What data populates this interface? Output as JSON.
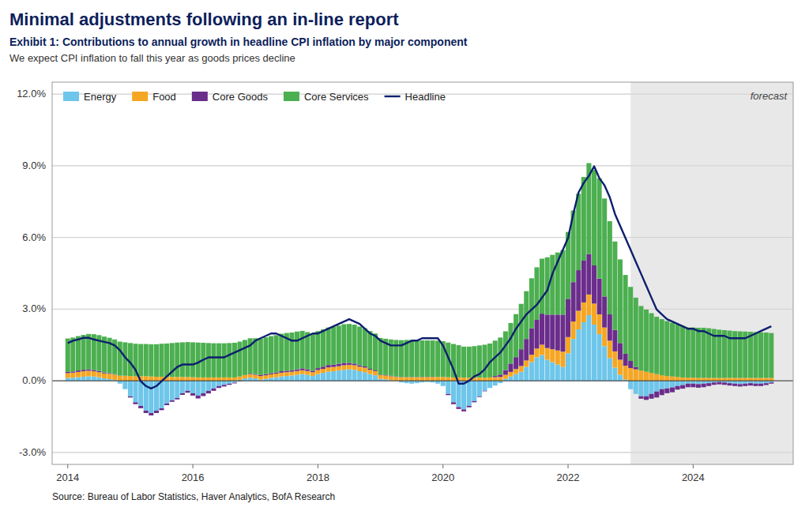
{
  "chart_data": {
    "type": "bar",
    "stacked": true,
    "title": "Minimal adjustments following an in-line report",
    "subtitle": [
      "Exhibit 1: Contributions to annual growth in headline CPI inflation by major component",
      "We expect CPI inflation to fall this year as goods prices decline"
    ],
    "source": "Source: Bureau of Labor Statistics, Haver Analytics, BofA Research",
    "annotations": [
      {
        "text": "forecast",
        "x": [
          2023.0,
          2025.6
        ]
      }
    ],
    "legend": "upper left",
    "grid": true,
    "xlim": [
      2013.75,
      2025.6
    ],
    "xticks": [
      2014,
      2016,
      2018,
      2020,
      2022,
      2024
    ],
    "ylim": [
      -3.5,
      12.5
    ],
    "yticks": [
      {
        "value": -3.0,
        "label": "-3.0%"
      },
      {
        "value": 0.0,
        "label": "0.0%"
      },
      {
        "value": 3.0,
        "label": "3.0%"
      },
      {
        "value": 6.0,
        "label": "6.0%"
      },
      {
        "value": 9.0,
        "label": "9.0%"
      },
      {
        "value": 12.0,
        "label": "12.0%"
      }
    ],
    "x": [
      2014.0,
      2014.083,
      2014.167,
      2014.25,
      2014.333,
      2014.417,
      2014.5,
      2014.583,
      2014.667,
      2014.75,
      2014.833,
      2014.917,
      2015.0,
      2015.083,
      2015.167,
      2015.25,
      2015.333,
      2015.417,
      2015.5,
      2015.583,
      2015.667,
      2015.75,
      2015.833,
      2015.917,
      2016.0,
      2016.083,
      2016.167,
      2016.25,
      2016.333,
      2016.417,
      2016.5,
      2016.583,
      2016.667,
      2016.75,
      2016.833,
      2016.917,
      2017.0,
      2017.083,
      2017.167,
      2017.25,
      2017.333,
      2017.417,
      2017.5,
      2017.583,
      2017.667,
      2017.75,
      2017.833,
      2017.917,
      2018.0,
      2018.083,
      2018.167,
      2018.25,
      2018.333,
      2018.417,
      2018.5,
      2018.583,
      2018.667,
      2018.75,
      2018.833,
      2018.917,
      2019.0,
      2019.083,
      2019.167,
      2019.25,
      2019.333,
      2019.417,
      2019.5,
      2019.583,
      2019.667,
      2019.75,
      2019.833,
      2019.917,
      2020.0,
      2020.083,
      2020.167,
      2020.25,
      2020.333,
      2020.417,
      2020.5,
      2020.583,
      2020.667,
      2020.75,
      2020.833,
      2020.917,
      2021.0,
      2021.083,
      2021.167,
      2021.25,
      2021.333,
      2021.417,
      2021.5,
      2021.583,
      2021.667,
      2021.75,
      2021.833,
      2021.917,
      2022.0,
      2022.083,
      2022.167,
      2022.25,
      2022.333,
      2022.417,
      2022.5,
      2022.583,
      2022.667,
      2022.75,
      2022.833,
      2022.917,
      2023.0,
      2023.083,
      2023.167,
      2023.25,
      2023.333,
      2023.417,
      2023.5,
      2023.583,
      2023.667,
      2023.75,
      2023.833,
      2023.917,
      2024.0,
      2024.083,
      2024.167,
      2024.25,
      2024.333,
      2024.417,
      2024.5,
      2024.583,
      2024.667,
      2024.75,
      2024.833,
      2024.917,
      2025.0,
      2025.083,
      2025.167,
      2025.25
    ],
    "series": [
      {
        "name": "Energy",
        "color": "#6EC6EA",
        "values": [
          0.12,
          0.13,
          0.15,
          0.17,
          0.19,
          0.18,
          0.15,
          0.1,
          0.07,
          0.04,
          -0.12,
          -0.35,
          -0.65,
          -0.9,
          -1.05,
          -1.25,
          -1.35,
          -1.25,
          -1.15,
          -0.95,
          -0.82,
          -0.72,
          -0.52,
          -0.42,
          -0.52,
          -0.62,
          -0.52,
          -0.42,
          -0.32,
          -0.22,
          -0.17,
          -0.12,
          -0.08,
          0.04,
          0.1,
          0.13,
          0.1,
          0.05,
          0.08,
          0.12,
          0.15,
          0.18,
          0.2,
          0.22,
          0.25,
          0.28,
          0.25,
          0.2,
          0.28,
          0.33,
          0.38,
          0.4,
          0.43,
          0.46,
          0.48,
          0.46,
          0.4,
          0.36,
          0.28,
          0.23,
          0.08,
          0.06,
          0.03,
          0.0,
          -0.07,
          -0.1,
          -0.12,
          -0.1,
          -0.07,
          -0.05,
          -0.07,
          -0.12,
          -0.22,
          -0.55,
          -0.9,
          -1.1,
          -1.2,
          -1.05,
          -0.85,
          -0.65,
          -0.42,
          -0.3,
          -0.2,
          -0.1,
          0.08,
          0.18,
          0.28,
          0.38,
          0.58,
          0.78,
          0.98,
          1.08,
          0.88,
          0.78,
          0.68,
          0.58,
          1.15,
          1.75,
          2.15,
          2.45,
          2.75,
          2.35,
          1.95,
          1.45,
          0.95,
          0.55,
          0.25,
          0.05,
          -0.35,
          -0.55,
          -0.65,
          -0.65,
          -0.55,
          -0.45,
          -0.35,
          -0.32,
          -0.28,
          -0.22,
          -0.18,
          -0.12,
          -0.12,
          -0.14,
          -0.12,
          -0.1,
          -0.07,
          -0.05,
          -0.07,
          -0.1,
          -0.12,
          -0.14,
          -0.12,
          -0.1,
          -0.12,
          -0.12,
          -0.1,
          -0.07
        ]
      },
      {
        "name": "Food",
        "color": "#F5A623",
        "values": [
          0.2,
          0.21,
          0.22,
          0.23,
          0.23,
          0.22,
          0.21,
          0.21,
          0.22,
          0.22,
          0.21,
          0.21,
          0.2,
          0.19,
          0.19,
          0.19,
          0.18,
          0.17,
          0.17,
          0.16,
          0.16,
          0.16,
          0.16,
          0.16,
          0.15,
          0.14,
          0.14,
          0.14,
          0.14,
          0.14,
          0.14,
          0.14,
          0.14,
          0.14,
          0.14,
          0.15,
          0.15,
          0.15,
          0.15,
          0.15,
          0.15,
          0.16,
          0.16,
          0.16,
          0.16,
          0.16,
          0.16,
          0.16,
          0.17,
          0.17,
          0.18,
          0.18,
          0.18,
          0.19,
          0.19,
          0.19,
          0.19,
          0.19,
          0.18,
          0.17,
          0.16,
          0.16,
          0.16,
          0.16,
          0.15,
          0.15,
          0.15,
          0.15,
          0.15,
          0.16,
          0.16,
          0.16,
          0.16,
          0.15,
          0.14,
          0.14,
          0.13,
          0.13,
          0.13,
          0.13,
          0.13,
          0.14,
          0.15,
          0.16,
          0.17,
          0.19,
          0.21,
          0.24,
          0.27,
          0.31,
          0.37,
          0.43,
          0.49,
          0.54,
          0.59,
          0.64,
          0.68,
          0.73,
          0.78,
          0.83,
          0.86,
          0.88,
          0.83,
          0.78,
          0.73,
          0.68,
          0.63,
          0.58,
          0.53,
          0.48,
          0.43,
          0.38,
          0.33,
          0.28,
          0.23,
          0.2,
          0.18,
          0.16,
          0.14,
          0.13,
          0.13,
          0.12,
          0.12,
          0.12,
          0.12,
          0.12,
          0.12,
          0.12,
          0.12,
          0.12,
          0.12,
          0.12,
          0.12,
          0.12,
          0.12,
          0.12
        ]
      },
      {
        "name": "Core Goods",
        "color": "#6B2D8B",
        "values": [
          0.05,
          0.05,
          0.06,
          0.06,
          0.06,
          0.05,
          0.05,
          0.04,
          0.03,
          0.02,
          0.01,
          0.0,
          -0.05,
          -0.08,
          -0.1,
          -0.1,
          -0.1,
          -0.1,
          -0.08,
          -0.07,
          -0.06,
          -0.06,
          -0.07,
          -0.08,
          -0.1,
          -0.12,
          -0.12,
          -0.11,
          -0.1,
          -0.08,
          -0.07,
          -0.05,
          -0.03,
          -0.02,
          0.0,
          0.02,
          0.03,
          0.04,
          0.05,
          0.05,
          0.05,
          0.06,
          0.06,
          0.06,
          0.07,
          0.08,
          0.07,
          0.06,
          0.08,
          0.09,
          0.1,
          0.1,
          0.1,
          0.1,
          0.08,
          0.07,
          0.06,
          0.05,
          0.04,
          0.03,
          0.02,
          0.02,
          0.02,
          0.02,
          0.01,
          0.01,
          0.01,
          0.01,
          0.01,
          0.01,
          0.01,
          0.0,
          0.0,
          -0.05,
          -0.08,
          -0.08,
          -0.08,
          -0.06,
          -0.05,
          -0.03,
          -0.02,
          0.0,
          0.05,
          0.1,
          0.2,
          0.35,
          0.5,
          0.7,
          0.9,
          1.1,
          1.2,
          1.3,
          1.4,
          1.45,
          1.5,
          1.55,
          1.6,
          1.65,
          1.7,
          1.75,
          1.7,
          1.6,
          1.5,
          1.3,
          1.1,
          0.9,
          0.7,
          0.5,
          0.3,
          0.1,
          -0.1,
          -0.15,
          -0.2,
          -0.25,
          -0.25,
          -0.2,
          -0.2,
          -0.15,
          -0.15,
          -0.15,
          -0.15,
          -0.15,
          -0.15,
          -0.12,
          -0.1,
          -0.1,
          -0.1,
          -0.1,
          -0.1,
          -0.1,
          -0.1,
          -0.1,
          -0.1,
          -0.1,
          -0.08,
          -0.05
        ]
      },
      {
        "name": "Core Services",
        "color": "#4CAF50",
        "values": [
          1.4,
          1.42,
          1.44,
          1.46,
          1.48,
          1.5,
          1.5,
          1.5,
          1.48,
          1.45,
          1.42,
          1.4,
          1.38,
          1.36,
          1.35,
          1.35,
          1.35,
          1.36,
          1.38,
          1.4,
          1.42,
          1.44,
          1.45,
          1.46,
          1.46,
          1.46,
          1.45,
          1.44,
          1.43,
          1.43,
          1.43,
          1.44,
          1.45,
          1.46,
          1.47,
          1.48,
          1.5,
          1.52,
          1.54,
          1.55,
          1.56,
          1.57,
          1.58,
          1.58,
          1.58,
          1.57,
          1.56,
          1.55,
          1.55,
          1.56,
          1.57,
          1.58,
          1.6,
          1.62,
          1.63,
          1.63,
          1.62,
          1.6,
          1.58,
          1.55,
          1.53,
          1.52,
          1.52,
          1.53,
          1.54,
          1.55,
          1.55,
          1.54,
          1.53,
          1.52,
          1.52,
          1.52,
          1.5,
          1.45,
          1.4,
          1.35,
          1.3,
          1.3,
          1.32,
          1.35,
          1.38,
          1.42,
          1.48,
          1.55,
          1.62,
          1.7,
          1.8,
          1.9,
          2.0,
          2.1,
          2.2,
          2.3,
          2.4,
          2.5,
          2.6,
          2.7,
          2.8,
          3.0,
          3.2,
          3.5,
          3.8,
          4.0,
          4.2,
          4.1,
          3.9,
          3.7,
          3.5,
          3.3,
          3.1,
          2.9,
          2.7,
          2.6,
          2.5,
          2.4,
          2.35,
          2.3,
          2.25,
          2.2,
          2.15,
          2.1,
          2.1,
          2.1,
          2.1,
          2.08,
          2.05,
          2.02,
          2.0,
          1.98,
          1.96,
          1.95,
          1.94,
          1.93,
          1.92,
          1.91,
          1.9,
          1.88
        ]
      },
      {
        "name": "Headline",
        "type": "line",
        "color": "#0D1F6E",
        "values": [
          1.58,
          1.68,
          1.73,
          1.8,
          1.8,
          1.73,
          1.68,
          1.63,
          1.58,
          1.48,
          1.28,
          0.98,
          0.76,
          0.46,
          -0.02,
          -0.22,
          -0.32,
          -0.22,
          -0.02,
          0.18,
          0.38,
          0.58,
          0.68,
          0.68,
          0.68,
          0.76,
          0.88,
          0.98,
          0.98,
          0.98,
          0.98,
          1.08,
          1.18,
          1.28,
          1.38,
          1.48,
          1.68,
          1.78,
          1.88,
          1.98,
          1.98,
          1.88,
          1.78,
          1.68,
          1.68,
          1.78,
          1.88,
          1.98,
          1.98,
          2.08,
          2.18,
          2.28,
          2.38,
          2.48,
          2.58,
          2.48,
          2.38,
          2.18,
          1.98,
          1.88,
          1.68,
          1.58,
          1.48,
          1.48,
          1.48,
          1.58,
          1.68,
          1.68,
          1.78,
          1.78,
          1.78,
          1.78,
          1.48,
          0.98,
          0.48,
          -0.12,
          -0.12,
          0.0,
          0.18,
          0.28,
          0.48,
          0.78,
          0.98,
          1.18,
          1.48,
          1.78,
          2.18,
          2.48,
          2.78,
          2.98,
          3.18,
          3.48,
          3.78,
          4.48,
          4.98,
          5.48,
          5.98,
          6.98,
          7.88,
          8.28,
          8.58,
          8.98,
          8.48,
          8.18,
          7.68,
          6.98,
          6.48,
          5.98,
          5.48,
          4.98,
          4.48,
          3.98,
          3.48,
          2.98,
          2.78,
          2.58,
          2.48,
          2.38,
          2.28,
          2.18,
          2.18,
          2.08,
          2.08,
          1.98,
          1.88,
          1.88,
          1.88,
          1.78,
          1.78,
          1.78,
          1.78,
          1.88,
          1.98,
          2.08,
          2.18,
          2.28
        ]
      }
    ]
  }
}
